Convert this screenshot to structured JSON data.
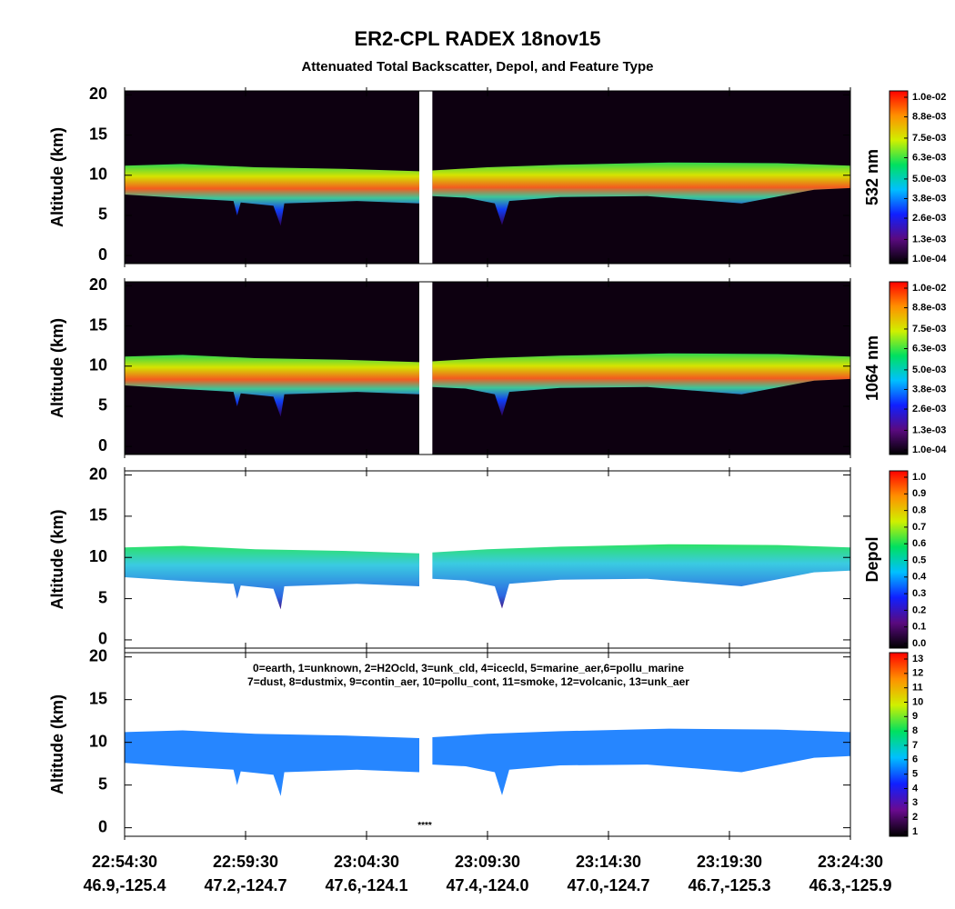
{
  "header": {
    "title": "ER2-CPL RADEX 18nov15",
    "subtitle": "Attenuated Total Backscatter, Depol, and Feature Type"
  },
  "x_axis": {
    "times": [
      "22:54:30",
      "22:59:30",
      "23:04:30",
      "23:09:30",
      "23:14:30",
      "23:19:30",
      "23:24:30"
    ],
    "locations": [
      "46.9,-125.4",
      "47.2,-124.7",
      "47.6,-124.1",
      "47.4,-124.0",
      "47.0,-124.7",
      "46.7,-125.3",
      "46.3,-125.9"
    ]
  },
  "chart_data": [
    {
      "type": "curtain",
      "ylabel": "Altitude (km)",
      "ylim": [
        -1,
        20.5
      ],
      "yticks": [
        0,
        5,
        10,
        15,
        20
      ],
      "background": "#0d0010",
      "colorbar": {
        "label": "532 nm",
        "colors": [
          "#000000",
          "#5a0a80",
          "#1020ff",
          "#00c0ff",
          "#00e060",
          "#d0f000",
          "#ff9000",
          "#ff0000"
        ],
        "ticks": [
          {
            "value": 0.0001,
            "label": "1.0e-04"
          },
          {
            "value": 0.0013,
            "label": "1.3e-03"
          },
          {
            "value": 0.0026,
            "label": "2.6e-03"
          },
          {
            "value": 0.0038,
            "label": "3.8e-03"
          },
          {
            "value": 0.005,
            "label": "5.0e-03"
          },
          {
            "value": 0.0063,
            "label": "6.3e-03"
          },
          {
            "value": 0.0075,
            "label": "7.5e-03"
          },
          {
            "value": 0.0088,
            "label": "8.8e-03"
          },
          {
            "value": 0.01,
            "label": "1.0e-02"
          }
        ]
      }
    },
    {
      "type": "curtain",
      "ylabel": "Altitude (km)",
      "ylim": [
        -1,
        20.5
      ],
      "yticks": [
        0,
        5,
        10,
        15,
        20
      ],
      "background": "#0d0010",
      "colorbar": {
        "label": "1064 nm",
        "colors": [
          "#000000",
          "#5a0a80",
          "#1020ff",
          "#00c0ff",
          "#00e060",
          "#d0f000",
          "#ff9000",
          "#ff0000"
        ],
        "ticks": [
          {
            "value": 0.0001,
            "label": "1.0e-04"
          },
          {
            "value": 0.0013,
            "label": "1.3e-03"
          },
          {
            "value": 0.0026,
            "label": "2.6e-03"
          },
          {
            "value": 0.0038,
            "label": "3.8e-03"
          },
          {
            "value": 0.005,
            "label": "5.0e-03"
          },
          {
            "value": 0.0063,
            "label": "6.3e-03"
          },
          {
            "value": 0.0075,
            "label": "7.5e-03"
          },
          {
            "value": 0.0088,
            "label": "8.8e-03"
          },
          {
            "value": 0.01,
            "label": "1.0e-02"
          }
        ]
      }
    },
    {
      "type": "depol",
      "ylabel": "Altitude (km)",
      "ylim": [
        -1,
        20.5
      ],
      "yticks": [
        0,
        5,
        10,
        15,
        20
      ],
      "background": "#ffffff",
      "colorbar": {
        "label": "Depol",
        "colors": [
          "#000000",
          "#5a0a80",
          "#1020ff",
          "#00c0ff",
          "#00e060",
          "#d0f000",
          "#ff9000",
          "#ff0000"
        ],
        "ticks": [
          {
            "value": 0,
            "label": "0.0"
          },
          0.1,
          0.2,
          0.3,
          0.4,
          0.5,
          0.6,
          0.7,
          0.8,
          0.9,
          {
            "value": 1,
            "label": "1.0"
          }
        ]
      }
    },
    {
      "type": "feature",
      "ylabel": "Altitude (km)",
      "ylim": [
        -1,
        20.5
      ],
      "yticks": [
        0,
        5,
        10,
        15,
        20
      ],
      "background": "#ffffff",
      "legend_lines": [
        "0=earth, 1=unknown, 2=H2Ocld, 3=unk_cld, 4=icecld, 5=marine_aer,6=pollu_marine",
        "7=dust, 8=dustmix, 9=contin_aer, 10=pollu_cont, 11=smoke, 12=volcanic, 13=unk_aer"
      ],
      "ground_marker": "****",
      "colorbar": {
        "label": "",
        "colors": [
          "#000000",
          "#6a0a90",
          "#1020ff",
          "#00c0ff",
          "#00e060",
          "#d0f000",
          "#ff9000",
          "#ff0000"
        ],
        "ticks": [
          1,
          2,
          3,
          4,
          5,
          6,
          7,
          8,
          9,
          10,
          11,
          12,
          13
        ]
      }
    }
  ]
}
